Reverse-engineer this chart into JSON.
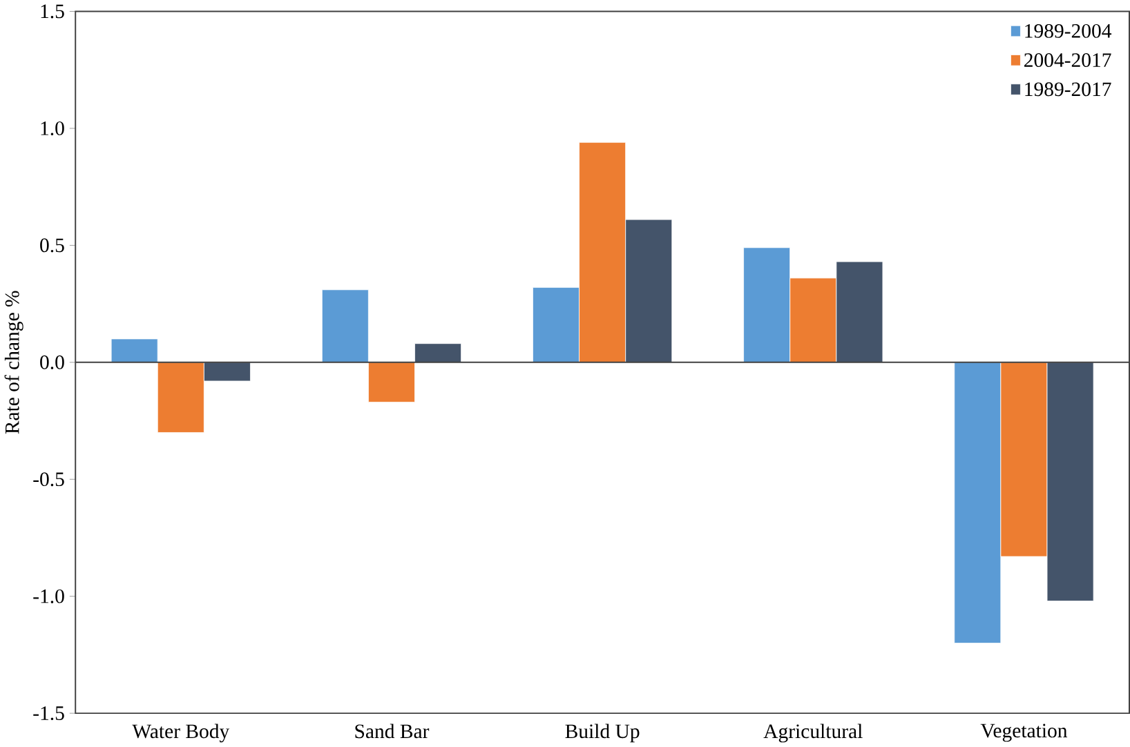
{
  "chart_data": {
    "type": "bar",
    "ylabel": "Rate of change %",
    "categories": [
      "Water  Body",
      "Sand  Bar",
      "Build  Up",
      "Agricultural",
      "Vegetation"
    ],
    "series": [
      {
        "name": "1989-2004",
        "color": "#5b9bd5",
        "values": [
          0.1,
          0.31,
          0.32,
          0.49,
          -1.2
        ]
      },
      {
        "name": "2004-2017",
        "color": "#ed7d31",
        "values": [
          -0.3,
          -0.17,
          0.94,
          0.36,
          -0.83
        ]
      },
      {
        "name": "1989-2017",
        "color": "#44546a",
        "values": [
          -0.08,
          0.08,
          0.61,
          0.43,
          -1.02
        ]
      }
    ],
    "ylim": [
      -1.5,
      1.5
    ],
    "yticks": [
      {
        "value": -1.5,
        "label": "-1.5"
      },
      {
        "value": -1.0,
        "label": "-1.0"
      },
      {
        "value": -0.5,
        "label": "-0.5"
      },
      {
        "value": 0,
        "label": "0.0"
      },
      {
        "value": 0.5,
        "label": "0.5"
      },
      {
        "value": 1.0,
        "label": "1.0"
      },
      {
        "value": 1.5,
        "label": "1.5"
      }
    ],
    "legend": "top right"
  }
}
